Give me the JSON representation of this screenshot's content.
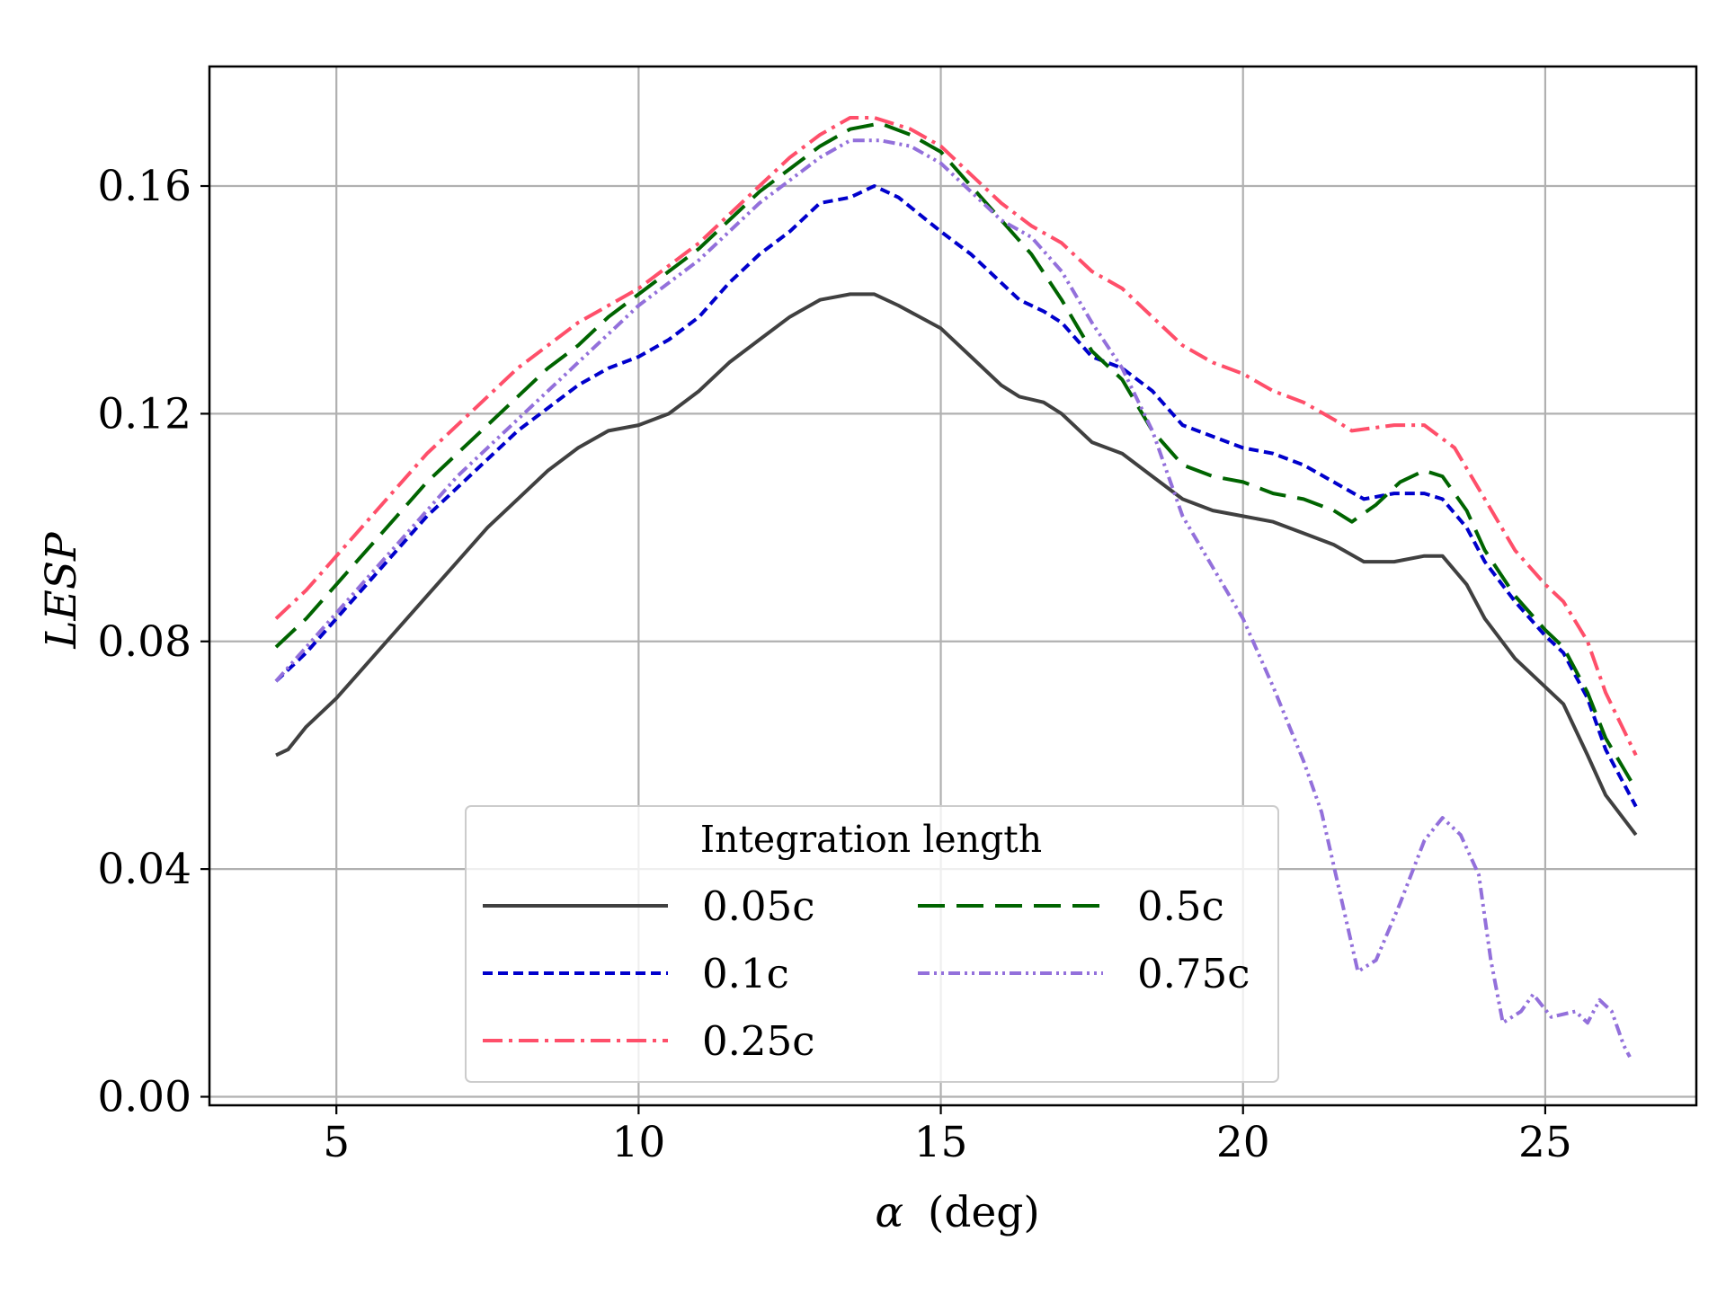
{
  "chart_data": {
    "type": "line",
    "title": "",
    "xlabel": "(deg)",
    "xlabel_symbol": "α",
    "ylabel": "LESP",
    "xlim": [
      2.9,
      27.5
    ],
    "ylim": [
      -0.0015,
      0.181
    ],
    "xticks": [
      5,
      10,
      15,
      20,
      25
    ],
    "xtick_labels": [
      "5",
      "10",
      "15",
      "20",
      "25"
    ],
    "yticks": [
      0.0,
      0.04,
      0.08,
      0.12,
      0.16
    ],
    "ytick_labels": [
      "0.00",
      "0.04",
      "0.08",
      "0.12",
      "0.16"
    ],
    "grid": true,
    "legend": {
      "title": "Integration length",
      "placement": "bottom-center",
      "columns": 2
    },
    "series": [
      {
        "name": "0.05c",
        "color": "#404040",
        "dash": "solid",
        "points": [
          [
            4.0,
            0.06
          ],
          [
            4.2,
            0.061
          ],
          [
            4.5,
            0.065
          ],
          [
            5,
            0.07
          ],
          [
            5.5,
            0.076
          ],
          [
            6,
            0.082
          ],
          [
            6.5,
            0.088
          ],
          [
            7,
            0.094
          ],
          [
            7.5,
            0.1
          ],
          [
            8,
            0.105
          ],
          [
            8.5,
            0.11
          ],
          [
            9,
            0.114
          ],
          [
            9.5,
            0.117
          ],
          [
            10,
            0.118
          ],
          [
            10.5,
            0.12
          ],
          [
            11,
            0.124
          ],
          [
            11.5,
            0.129
          ],
          [
            12,
            0.133
          ],
          [
            12.5,
            0.137
          ],
          [
            13,
            0.14
          ],
          [
            13.5,
            0.141
          ],
          [
            13.9,
            0.141
          ],
          [
            14.3,
            0.139
          ],
          [
            15,
            0.135
          ],
          [
            15.5,
            0.13
          ],
          [
            16,
            0.125
          ],
          [
            16.3,
            0.123
          ],
          [
            16.7,
            0.122
          ],
          [
            17,
            0.12
          ],
          [
            17.5,
            0.115
          ],
          [
            18,
            0.113
          ],
          [
            18.5,
            0.109
          ],
          [
            19,
            0.105
          ],
          [
            19.5,
            0.103
          ],
          [
            20,
            0.102
          ],
          [
            20.5,
            0.101
          ],
          [
            21,
            0.099
          ],
          [
            21.5,
            0.097
          ],
          [
            22,
            0.094
          ],
          [
            22.5,
            0.094
          ],
          [
            23,
            0.095
          ],
          [
            23.3,
            0.095
          ],
          [
            23.7,
            0.09
          ],
          [
            24,
            0.084
          ],
          [
            24.5,
            0.077
          ],
          [
            25,
            0.072
          ],
          [
            25.3,
            0.069
          ],
          [
            25.7,
            0.06
          ],
          [
            26,
            0.053
          ],
          [
            26.5,
            0.046
          ]
        ]
      },
      {
        "name": "0.1c",
        "color": "#0000cc",
        "dash": "short",
        "points": [
          [
            4.0,
            0.073
          ],
          [
            4.5,
            0.078
          ],
          [
            5,
            0.084
          ],
          [
            5.5,
            0.09
          ],
          [
            6,
            0.096
          ],
          [
            6.5,
            0.102
          ],
          [
            7,
            0.107
          ],
          [
            7.5,
            0.112
          ],
          [
            8,
            0.117
          ],
          [
            8.5,
            0.121
          ],
          [
            9,
            0.125
          ],
          [
            9.5,
            0.128
          ],
          [
            10,
            0.13
          ],
          [
            10.5,
            0.133
          ],
          [
            11,
            0.137
          ],
          [
            11.5,
            0.143
          ],
          [
            12,
            0.148
          ],
          [
            12.5,
            0.152
          ],
          [
            13,
            0.157
          ],
          [
            13.5,
            0.158
          ],
          [
            13.9,
            0.16
          ],
          [
            14.3,
            0.158
          ],
          [
            15,
            0.152
          ],
          [
            15.5,
            0.148
          ],
          [
            16,
            0.143
          ],
          [
            16.3,
            0.14
          ],
          [
            16.7,
            0.138
          ],
          [
            17,
            0.136
          ],
          [
            17.5,
            0.13
          ],
          [
            18,
            0.128
          ],
          [
            18.5,
            0.124
          ],
          [
            19,
            0.118
          ],
          [
            19.5,
            0.116
          ],
          [
            20,
            0.114
          ],
          [
            20.5,
            0.113
          ],
          [
            21,
            0.111
          ],
          [
            21.5,
            0.108
          ],
          [
            22,
            0.105
          ],
          [
            22.5,
            0.106
          ],
          [
            23,
            0.106
          ],
          [
            23.3,
            0.105
          ],
          [
            23.7,
            0.1
          ],
          [
            24,
            0.094
          ],
          [
            24.5,
            0.087
          ],
          [
            25,
            0.081
          ],
          [
            25.3,
            0.078
          ],
          [
            25.7,
            0.07
          ],
          [
            26,
            0.061
          ],
          [
            26.5,
            0.051
          ]
        ]
      },
      {
        "name": "0.25c",
        "color": "#ff4f6a",
        "dash": "dashdot",
        "points": [
          [
            4.0,
            0.084
          ],
          [
            4.5,
            0.089
          ],
          [
            5,
            0.095
          ],
          [
            5.5,
            0.101
          ],
          [
            6,
            0.107
          ],
          [
            6.5,
            0.113
          ],
          [
            7,
            0.118
          ],
          [
            7.5,
            0.123
          ],
          [
            8,
            0.128
          ],
          [
            8.5,
            0.132
          ],
          [
            9,
            0.136
          ],
          [
            9.5,
            0.139
          ],
          [
            10,
            0.142
          ],
          [
            10.5,
            0.146
          ],
          [
            11,
            0.15
          ],
          [
            11.5,
            0.155
          ],
          [
            12,
            0.16
          ],
          [
            12.5,
            0.165
          ],
          [
            13,
            0.169
          ],
          [
            13.5,
            0.172
          ],
          [
            13.9,
            0.172
          ],
          [
            14.5,
            0.17
          ],
          [
            15,
            0.167
          ],
          [
            15.5,
            0.162
          ],
          [
            16,
            0.157
          ],
          [
            16.5,
            0.153
          ],
          [
            17,
            0.15
          ],
          [
            17.5,
            0.145
          ],
          [
            18,
            0.142
          ],
          [
            18.5,
            0.137
          ],
          [
            19,
            0.132
          ],
          [
            19.5,
            0.129
          ],
          [
            20,
            0.127
          ],
          [
            20.5,
            0.124
          ],
          [
            21,
            0.122
          ],
          [
            21.5,
            0.119
          ],
          [
            21.8,
            0.117
          ],
          [
            22.5,
            0.118
          ],
          [
            23,
            0.118
          ],
          [
            23.5,
            0.114
          ],
          [
            24,
            0.105
          ],
          [
            24.5,
            0.096
          ],
          [
            25,
            0.09
          ],
          [
            25.3,
            0.087
          ],
          [
            25.7,
            0.08
          ],
          [
            26,
            0.071
          ],
          [
            26.5,
            0.06
          ]
        ]
      },
      {
        "name": "0.5c",
        "color": "#006400",
        "dash": "long",
        "points": [
          [
            4.0,
            0.079
          ],
          [
            4.5,
            0.084
          ],
          [
            5,
            0.09
          ],
          [
            5.5,
            0.096
          ],
          [
            6,
            0.102
          ],
          [
            6.5,
            0.108
          ],
          [
            7,
            0.113
          ],
          [
            7.5,
            0.118
          ],
          [
            8,
            0.123
          ],
          [
            8.5,
            0.128
          ],
          [
            9,
            0.132
          ],
          [
            9.5,
            0.137
          ],
          [
            10,
            0.141
          ],
          [
            10.5,
            0.145
          ],
          [
            11,
            0.149
          ],
          [
            11.5,
            0.154
          ],
          [
            12,
            0.159
          ],
          [
            12.5,
            0.163
          ],
          [
            13,
            0.167
          ],
          [
            13.5,
            0.17
          ],
          [
            14,
            0.171
          ],
          [
            14.5,
            0.169
          ],
          [
            15,
            0.166
          ],
          [
            15.5,
            0.16
          ],
          [
            16,
            0.154
          ],
          [
            16.5,
            0.148
          ],
          [
            17,
            0.14
          ],
          [
            17.5,
            0.131
          ],
          [
            18,
            0.126
          ],
          [
            18.5,
            0.117
          ],
          [
            19,
            0.111
          ],
          [
            19.5,
            0.109
          ],
          [
            20,
            0.108
          ],
          [
            20.5,
            0.106
          ],
          [
            21,
            0.105
          ],
          [
            21.5,
            0.103
          ],
          [
            21.8,
            0.101
          ],
          [
            22.2,
            0.104
          ],
          [
            22.6,
            0.108
          ],
          [
            23,
            0.11
          ],
          [
            23.3,
            0.109
          ],
          [
            23.7,
            0.103
          ],
          [
            24,
            0.096
          ],
          [
            24.5,
            0.088
          ],
          [
            25,
            0.082
          ],
          [
            25.3,
            0.079
          ],
          [
            25.7,
            0.071
          ],
          [
            26,
            0.063
          ],
          [
            26.5,
            0.054
          ]
        ]
      },
      {
        "name": "0.75c",
        "color": "#9370db",
        "dash": "dashdotdot",
        "points": [
          [
            4.0,
            0.073
          ],
          [
            4.5,
            0.079
          ],
          [
            5,
            0.085
          ],
          [
            5.5,
            0.091
          ],
          [
            6,
            0.097
          ],
          [
            6.5,
            0.103
          ],
          [
            7,
            0.109
          ],
          [
            7.5,
            0.114
          ],
          [
            8,
            0.119
          ],
          [
            8.5,
            0.124
          ],
          [
            9,
            0.129
          ],
          [
            9.5,
            0.134
          ],
          [
            10,
            0.139
          ],
          [
            10.5,
            0.143
          ],
          [
            11,
            0.147
          ],
          [
            11.5,
            0.152
          ],
          [
            12,
            0.157
          ],
          [
            12.5,
            0.161
          ],
          [
            13,
            0.165
          ],
          [
            13.5,
            0.168
          ],
          [
            14,
            0.168
          ],
          [
            14.5,
            0.167
          ],
          [
            15,
            0.164
          ],
          [
            15.5,
            0.159
          ],
          [
            16,
            0.154
          ],
          [
            16.5,
            0.151
          ],
          [
            17,
            0.145
          ],
          [
            17.5,
            0.136
          ],
          [
            18,
            0.128
          ],
          [
            18.5,
            0.117
          ],
          [
            19,
            0.102
          ],
          [
            19.5,
            0.093
          ],
          [
            20,
            0.084
          ],
          [
            20.5,
            0.072
          ],
          [
            21,
            0.059
          ],
          [
            21.3,
            0.05
          ],
          [
            21.6,
            0.036
          ],
          [
            21.9,
            0.022
          ],
          [
            22.2,
            0.024
          ],
          [
            22.6,
            0.034
          ],
          [
            23,
            0.045
          ],
          [
            23.3,
            0.049
          ],
          [
            23.6,
            0.046
          ],
          [
            23.9,
            0.039
          ],
          [
            24.1,
            0.024
          ],
          [
            24.3,
            0.013
          ],
          [
            24.6,
            0.015
          ],
          [
            24.8,
            0.018
          ],
          [
            25.1,
            0.014
          ],
          [
            25.5,
            0.015
          ],
          [
            25.7,
            0.013
          ],
          [
            25.9,
            0.017
          ],
          [
            26.1,
            0.015
          ],
          [
            26.3,
            0.009
          ],
          [
            26.4,
            0.007
          ]
        ]
      }
    ]
  }
}
